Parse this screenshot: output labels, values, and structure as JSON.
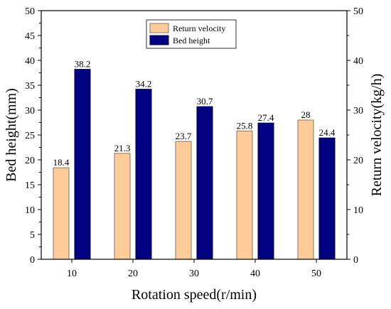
{
  "chart_data": {
    "type": "bar",
    "categories": [
      "10",
      "20",
      "30",
      "40",
      "50"
    ],
    "xlabel": "Rotation speed(r/min)",
    "ylabel_left": "Bed height(mm)",
    "ylabel_right": "Return velocity(kg/h)",
    "ylim": [
      0,
      50
    ],
    "ylim_right": [
      0,
      50
    ],
    "yticks": [
      "0",
      "5",
      "10",
      "15",
      "20",
      "25",
      "30",
      "35",
      "40",
      "45",
      "50"
    ],
    "yticks_right": [
      "0",
      "10",
      "20",
      "30",
      "40",
      "50"
    ],
    "grid": false,
    "legend_position": "top-center",
    "series": [
      {
        "name": "Return velocity",
        "axis": "right",
        "color": "#FFCC99",
        "values": [
          18.4,
          21.3,
          23.7,
          25.8,
          28
        ],
        "labels": [
          "18.4",
          "21.3",
          "23.7",
          "25.8",
          "28"
        ]
      },
      {
        "name": "Bed height",
        "axis": "left",
        "color": "#000080",
        "values": [
          38.2,
          34.2,
          30.7,
          27.4,
          24.4
        ],
        "labels": [
          "38.2",
          "34.2",
          "30.7",
          "27.4",
          "24.4"
        ]
      }
    ]
  }
}
